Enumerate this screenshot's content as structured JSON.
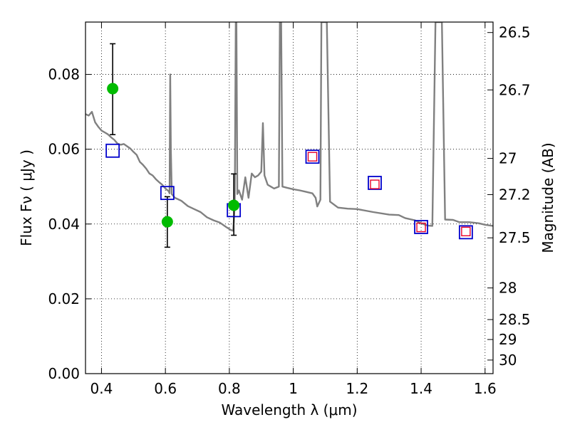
{
  "chart_data": {
    "type": "scatter",
    "xlabel": "Wavelength  λ (μm)",
    "ylabel": "Flux  Fν  ( μJy )",
    "y2label": "Magnitude (AB)",
    "xlim": [
      0.35,
      1.625
    ],
    "ylim": [
      0.0,
      0.094
    ],
    "grid": true,
    "xticks": [
      0.4,
      0.6,
      0.8,
      1.0,
      1.2,
      1.4,
      1.6
    ],
    "xtick_labels": [
      "0.4",
      "0.6",
      "0.8",
      "1",
      "1.2",
      "1.4",
      "1.6"
    ],
    "yticks": [
      0.0,
      0.02,
      0.04,
      0.06,
      0.08
    ],
    "ytick_labels": [
      "0.00",
      "0.02",
      "0.04",
      "0.06",
      "0.08"
    ],
    "mag_ticks": [
      {
        "label": "26.5",
        "mag": 26.5
      },
      {
        "label": "26.7",
        "mag": 26.7
      },
      {
        "label": "27",
        "mag": 27.0
      },
      {
        "label": "27.2",
        "mag": 27.2
      },
      {
        "label": "27.5",
        "mag": 27.5
      },
      {
        "label": "28",
        "mag": 28.0
      },
      {
        "label": "28.5",
        "mag": 28.5
      },
      {
        "label": "29",
        "mag": 29.0
      },
      {
        "label": "30",
        "mag": 30.0
      }
    ],
    "colors": {
      "model": "#808080",
      "observed": "#00bb00",
      "model_box": "#0000cc",
      "predicted_box": "#e8002a",
      "errorbar": "#000000",
      "grid": "#000000"
    },
    "observed_photometry": [
      {
        "x": 0.435,
        "y": 0.0762,
        "err_low": 0.0123,
        "err_high": 0.012
      },
      {
        "x": 0.606,
        "y": 0.0406,
        "err_low": 0.0068,
        "err_high": 0.0067
      },
      {
        "x": 0.814,
        "y": 0.045,
        "err_low": 0.008,
        "err_high": 0.0084
      }
    ],
    "model_photometry_blue": [
      {
        "x": 0.435,
        "y": 0.0596
      },
      {
        "x": 0.606,
        "y": 0.0483
      },
      {
        "x": 0.814,
        "y": 0.0437
      },
      {
        "x": 1.06,
        "y": 0.058
      },
      {
        "x": 1.255,
        "y": 0.051
      },
      {
        "x": 1.4,
        "y": 0.0392
      },
      {
        "x": 1.54,
        "y": 0.0378
      }
    ],
    "model_photometry_red": [
      {
        "x": 1.06,
        "y": 0.058
      },
      {
        "x": 1.255,
        "y": 0.0506
      },
      {
        "x": 1.4,
        "y": 0.0391
      },
      {
        "x": 1.54,
        "y": 0.038
      }
    ],
    "model_spectrum": [
      [
        0.35,
        0.0694
      ],
      [
        0.36,
        0.069
      ],
      [
        0.37,
        0.07
      ],
      [
        0.38,
        0.0672
      ],
      [
        0.39,
        0.066
      ],
      [
        0.4,
        0.065
      ],
      [
        0.41,
        0.0645
      ],
      [
        0.42,
        0.064
      ],
      [
        0.43,
        0.0632
      ],
      [
        0.44,
        0.0625
      ],
      [
        0.45,
        0.0615
      ],
      [
        0.46,
        0.0612
      ],
      [
        0.47,
        0.0614
      ],
      [
        0.48,
        0.0608
      ],
      [
        0.49,
        0.0602
      ],
      [
        0.5,
        0.0593
      ],
      [
        0.51,
        0.0585
      ],
      [
        0.52,
        0.0566
      ],
      [
        0.53,
        0.0558
      ],
      [
        0.54,
        0.0548
      ],
      [
        0.55,
        0.0535
      ],
      [
        0.56,
        0.053
      ],
      [
        0.57,
        0.052
      ],
      [
        0.58,
        0.0512
      ],
      [
        0.59,
        0.0505
      ],
      [
        0.6,
        0.0495
      ],
      [
        0.61,
        0.0488
      ],
      [
        0.613,
        0.0482
      ],
      [
        0.615,
        0.08
      ],
      [
        0.617,
        0.06
      ],
      [
        0.62,
        0.048
      ],
      [
        0.63,
        0.047
      ],
      [
        0.65,
        0.0462
      ],
      [
        0.67,
        0.0448
      ],
      [
        0.69,
        0.044
      ],
      [
        0.71,
        0.0432
      ],
      [
        0.73,
        0.0418
      ],
      [
        0.75,
        0.041
      ],
      [
        0.77,
        0.0404
      ],
      [
        0.79,
        0.0392
      ],
      [
        0.805,
        0.0384
      ],
      [
        0.812,
        0.0382
      ],
      [
        0.817,
        0.045
      ],
      [
        0.82,
        0.094
      ],
      [
        0.822,
        0.094
      ],
      [
        0.825,
        0.048
      ],
      [
        0.83,
        0.049
      ],
      [
        0.84,
        0.0465
      ],
      [
        0.85,
        0.0525
      ],
      [
        0.86,
        0.047
      ],
      [
        0.87,
        0.0535
      ],
      [
        0.88,
        0.0525
      ],
      [
        0.89,
        0.053
      ],
      [
        0.9,
        0.054
      ],
      [
        0.905,
        0.067
      ],
      [
        0.91,
        0.053
      ],
      [
        0.92,
        0.0505
      ],
      [
        0.94,
        0.0495
      ],
      [
        0.955,
        0.05
      ],
      [
        0.958,
        0.094
      ],
      [
        0.962,
        0.094
      ],
      [
        0.966,
        0.05
      ],
      [
        0.98,
        0.0497
      ],
      [
        1.0,
        0.0493
      ],
      [
        1.02,
        0.049
      ],
      [
        1.04,
        0.0486
      ],
      [
        1.06,
        0.0482
      ],
      [
        1.07,
        0.047
      ],
      [
        1.075,
        0.0447
      ],
      [
        1.085,
        0.0465
      ],
      [
        1.088,
        0.094
      ],
      [
        1.105,
        0.094
      ],
      [
        1.115,
        0.046
      ],
      [
        1.14,
        0.0444
      ],
      [
        1.17,
        0.0441
      ],
      [
        1.2,
        0.044
      ],
      [
        1.25,
        0.0432
      ],
      [
        1.3,
        0.0425
      ],
      [
        1.33,
        0.0424
      ],
      [
        1.35,
        0.0416
      ],
      [
        1.38,
        0.041
      ],
      [
        1.4,
        0.0402
      ],
      [
        1.42,
        0.0396
      ],
      [
        1.435,
        0.0395
      ],
      [
        1.445,
        0.094
      ],
      [
        1.465,
        0.094
      ],
      [
        1.475,
        0.0412
      ],
      [
        1.5,
        0.0411
      ],
      [
        1.52,
        0.0405
      ],
      [
        1.55,
        0.0405
      ],
      [
        1.58,
        0.0402
      ],
      [
        1.6,
        0.0398
      ],
      [
        1.625,
        0.0395
      ]
    ]
  }
}
